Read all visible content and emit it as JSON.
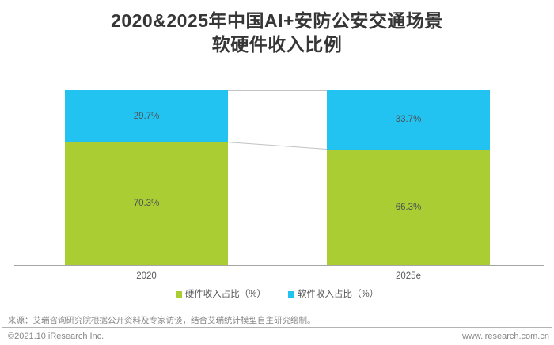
{
  "title": {
    "line1": "2020&2025年中国AI+安防公安交通场景",
    "line2": "软硬件收入比例"
  },
  "chart_data": {
    "type": "bar",
    "subtype": "stacked-100-percent",
    "categories": [
      "2020",
      "2025e"
    ],
    "series": [
      {
        "name": "硬件收入占比（%）",
        "color": "#a9cd33",
        "values": [
          70.3,
          66.3
        ]
      },
      {
        "name": "软件收入占比（%）",
        "color": "#22c3f0",
        "values": [
          29.7,
          33.7
        ]
      }
    ],
    "value_labels": [
      [
        "70.3%",
        "66.3%"
      ],
      [
        "29.7%",
        "33.7%"
      ]
    ],
    "ylim": [
      0,
      100
    ],
    "grid": false,
    "legend_position": "bottom",
    "connector_lines": true
  },
  "footer": {
    "source": "来源：艾瑞咨询研究院根据公开资料及专家访谈，结合艾瑞统计模型自主研究绘制。",
    "copyright": "©2021.10 iResearch Inc.",
    "website": "www.iresearch.com.cn"
  },
  "colors": {
    "hardware": "#a9cd33",
    "software": "#22c3f0",
    "title_text": "#363636",
    "segment_label": "#4d5156",
    "axis_line": "#a6a6a6",
    "connector_line": "#c2c2c2",
    "footer_text": "#878787"
  }
}
